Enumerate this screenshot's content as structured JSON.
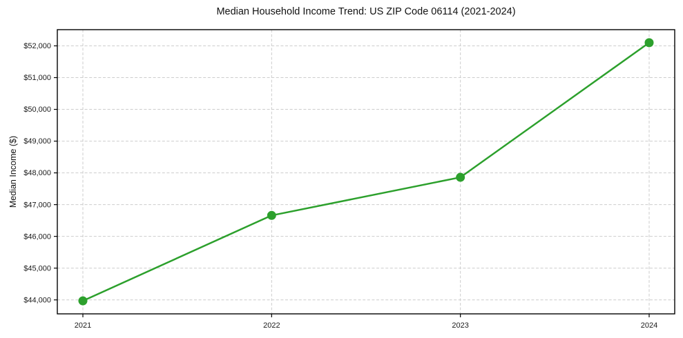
{
  "chart_data": {
    "type": "line",
    "title": "Median Household Income Trend: US ZIP Code 06114 (2021-2024)",
    "xlabel": "",
    "ylabel": "Median Income ($)",
    "categories": [
      "2021",
      "2022",
      "2023",
      "2024"
    ],
    "series": [
      {
        "values": [
          43970,
          46660,
          47860,
          52100
        ],
        "color": "#2ca02c"
      }
    ],
    "yticks": [
      44000,
      45000,
      46000,
      47000,
      48000,
      49000,
      50000,
      51000,
      52000
    ],
    "ytick_labels": [
      "$44,000",
      "$45,000",
      "$46,000",
      "$47,000",
      "$48,000",
      "$49,000",
      "$50,000",
      "$51,000",
      "$52,000"
    ],
    "ylim": [
      43560,
      52510
    ],
    "grid": true,
    "grid_style": "dashed",
    "legend_position": "none",
    "marker": "circle",
    "line_width": 2.5,
    "marker_diameter": 13,
    "colors": {
      "line": "#2ca02c",
      "grid": "#cccccc",
      "axis": "#000000",
      "text": "#1a1a1a",
      "background": "#ffffff"
    }
  }
}
